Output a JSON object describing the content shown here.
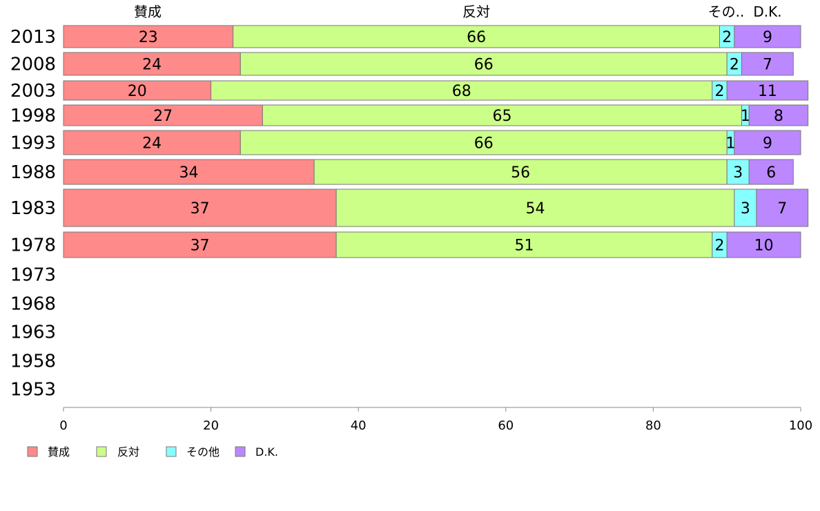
{
  "chart_data": {
    "type": "bar",
    "orientation": "horizontal",
    "stacked": true,
    "column_headers": [
      "賛成",
      "反対",
      "その..",
      "D.K."
    ],
    "categories": [
      "2013",
      "2008",
      "2003",
      "1998",
      "1993",
      "1988",
      "1983",
      "1978",
      "1973",
      "1968",
      "1963",
      "1958",
      "1953"
    ],
    "series": [
      {
        "name": "賛成",
        "color": "#ff8a8a",
        "values": [
          23,
          24,
          20,
          27,
          24,
          34,
          37,
          37,
          null,
          null,
          null,
          null,
          null
        ]
      },
      {
        "name": "反対",
        "color": "#ccff88",
        "values": [
          66,
          66,
          68,
          65,
          66,
          56,
          54,
          51,
          null,
          null,
          null,
          null,
          null
        ]
      },
      {
        "name": "その他",
        "color": "#88ffff",
        "values": [
          2,
          2,
          2,
          1,
          1,
          3,
          3,
          2,
          null,
          null,
          null,
          null,
          null
        ]
      },
      {
        "name": "D.K.",
        "color": "#bb88ff",
        "values": [
          9,
          7,
          11,
          8,
          9,
          6,
          7,
          10,
          null,
          null,
          null,
          null,
          null
        ]
      }
    ],
    "xlim": [
      0,
      100
    ],
    "xticks": [
      "0",
      "20",
      "40",
      "60",
      "80",
      "100"
    ],
    "legend_position": "bottom-left",
    "grid": false
  }
}
